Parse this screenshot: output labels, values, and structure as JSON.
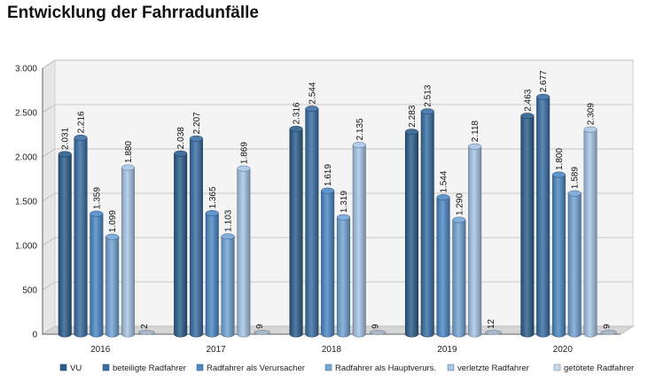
{
  "chart_data": {
    "type": "bar",
    "title": "Entwicklung der Fahrradunfälle",
    "xlabel": "",
    "ylabel": "",
    "categories": [
      "2016",
      "2017",
      "2018",
      "2019",
      "2020"
    ],
    "ylim": [
      0,
      3000
    ],
    "yticks": [
      0,
      500,
      1000,
      1500,
      2000,
      2500,
      3000
    ],
    "ytick_labels": [
      "0",
      "500",
      "1.000",
      "1.500",
      "2.000",
      "2.500",
      "3.000"
    ],
    "grid": true,
    "legend_position": "bottom",
    "series": [
      {
        "name": "VU",
        "color": "#2c5f8e",
        "values": [
          2031,
          2038,
          2316,
          2283,
          2463
        ],
        "labels": [
          "2.031",
          "2.038",
          "2.316",
          "2.283",
          "2.463"
        ]
      },
      {
        "name": "beteiligte Radfahrer",
        "color": "#3a6fa6",
        "values": [
          2216,
          2207,
          2544,
          2513,
          2677
        ],
        "labels": [
          "2.216",
          "2.207",
          "2.544",
          "2.513",
          "2.677"
        ]
      },
      {
        "name": "Radfahrer als Verursacher",
        "color": "#4d8ac8",
        "values": [
          1359,
          1365,
          1619,
          1544,
          1800
        ],
        "labels": [
          "1.359",
          "1.365",
          "1.619",
          "1.544",
          "1.800"
        ]
      },
      {
        "name": "Radfahrer als Hauptverurs.",
        "color": "#74a6d8",
        "values": [
          1099,
          1103,
          1319,
          1290,
          1589
        ],
        "labels": [
          "1.099",
          "1.103",
          "1.319",
          "1.290",
          "1.589"
        ]
      },
      {
        "name": "verletzte Radfahrer",
        "color": "#a8c7e8",
        "values": [
          1880,
          1869,
          2135,
          2118,
          2309
        ],
        "labels": [
          "1.880",
          "1.869",
          "2.135",
          "2.118",
          "2.309"
        ]
      },
      {
        "name": "getötete Radfahrer",
        "color": "#c6d9ef",
        "values": [
          2,
          9,
          9,
          12,
          9
        ],
        "labels": [
          "2",
          "9",
          "9",
          "12",
          "9"
        ]
      }
    ]
  }
}
